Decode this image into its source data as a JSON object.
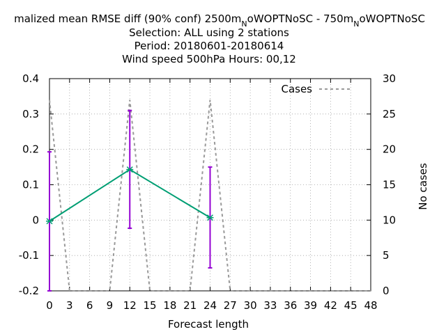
{
  "chart_data": {
    "type": "line",
    "title_lines": [
      "malized mean RMSE diff (90% conf) 2500m_NoWOPTNoSC - 750m_NoWOPTNoSC",
      "Selection: ALL using     2 stations",
      "Period: 20180601-20180614",
      "Wind speed 500hPa   Hours:  00,12"
    ],
    "title_pre": "malized mean RMSE diff (90% conf) 2500m",
    "title_mid1": "oWOPTNoSC - 750m",
    "title_post": "oWOPTNoSC",
    "title_sub": "N",
    "title_line2": "Selection: ALL using     2 stations",
    "title_line3": "Period: 20180601-20180614",
    "title_line4": "Wind speed 500hPa   Hours:  00,12",
    "xlabel": "Forecast length",
    "ylabel": "",
    "y2label": "No cases",
    "xlim": [
      0,
      48
    ],
    "ylim": [
      -0.2,
      0.4
    ],
    "y2lim": [
      0,
      30
    ],
    "x_ticks": [
      "0",
      "3",
      "6",
      "9",
      "12",
      "15",
      "18",
      "21",
      "24",
      "27",
      "30",
      "33",
      "36",
      "39",
      "42",
      "45",
      "48"
    ],
    "y_ticks": [
      "-0.2",
      "-0.1",
      "0",
      "0.1",
      "0.2",
      "0.3",
      "0.4"
    ],
    "y2_ticks": [
      "0",
      "5",
      "10",
      "15",
      "20",
      "25",
      "30"
    ],
    "grid": true,
    "legend_position": "top-right",
    "legend_label": "Cases",
    "series": [
      {
        "x": [
          0,
          12,
          24
        ],
        "values": [
          -0.003,
          0.143,
          0.007
        ],
        "err_low": [
          -0.2,
          -0.023,
          -0.135
        ],
        "err_high": [
          0.193,
          0.31,
          0.15
        ],
        "color": "#009e73",
        "error_color": "#9400d3"
      }
    ],
    "cases": {
      "name": "Cases",
      "x": [
        0,
        3,
        9,
        12,
        15,
        21,
        24,
        27,
        48
      ],
      "values": [
        27,
        0,
        0,
        27,
        0,
        0,
        27,
        0,
        0
      ],
      "color": "#999999"
    }
  }
}
